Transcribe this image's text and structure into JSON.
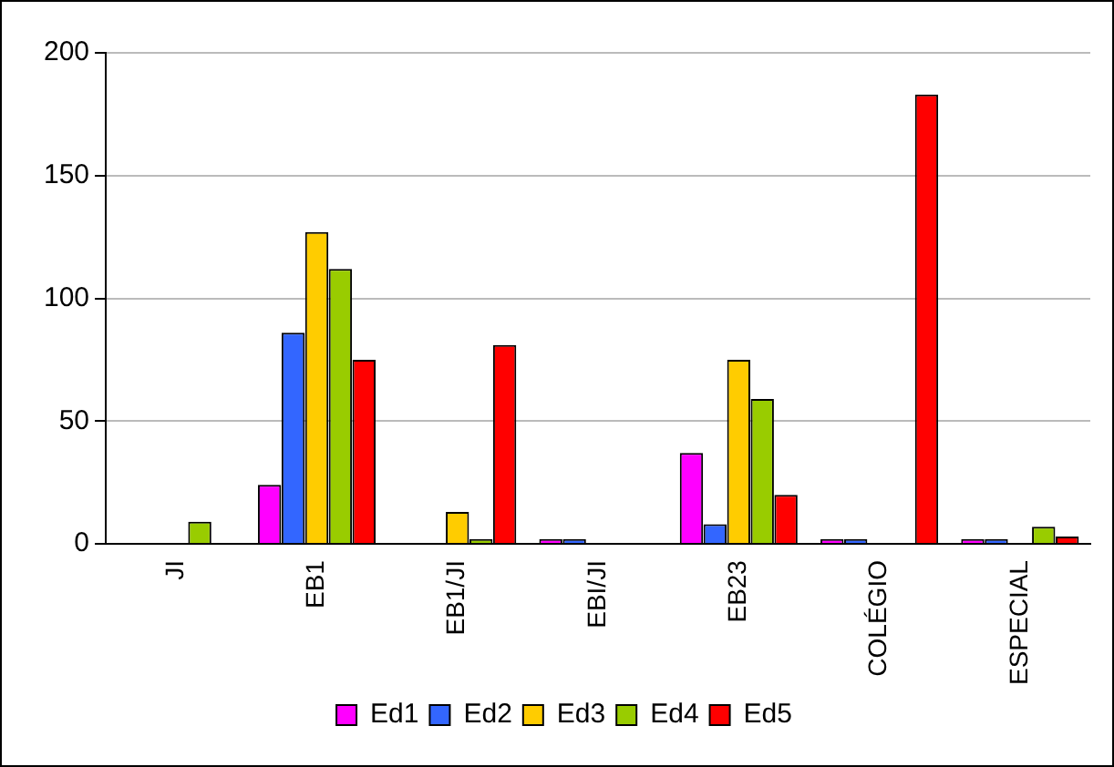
{
  "chart_data": {
    "type": "bar",
    "categories": [
      "JI",
      "EB1",
      "EB1/JI",
      "EBI/JI",
      "EB23",
      "COLÉGIO",
      "ESPECIAL"
    ],
    "series": [
      {
        "name": "Ed1",
        "color": "#ff00ff",
        "values": [
          0,
          24,
          0,
          2,
          37,
          2,
          2
        ]
      },
      {
        "name": "Ed2",
        "color": "#3366ff",
        "values": [
          0,
          86,
          0,
          2,
          8,
          2,
          2
        ]
      },
      {
        "name": "Ed3",
        "color": "#ffcc00",
        "values": [
          0,
          127,
          13,
          0,
          75,
          0,
          0
        ]
      },
      {
        "name": "Ed4",
        "color": "#99cc00",
        "values": [
          9,
          112,
          2,
          0,
          59,
          0,
          7
        ]
      },
      {
        "name": "Ed5",
        "color": "#ff0000",
        "values": [
          0,
          75,
          81,
          0,
          20,
          183,
          3
        ]
      }
    ],
    "ylim": [
      0,
      200
    ],
    "yticks": [
      0,
      50,
      100,
      150,
      200
    ],
    "grid": "y",
    "legend": "bottom"
  }
}
